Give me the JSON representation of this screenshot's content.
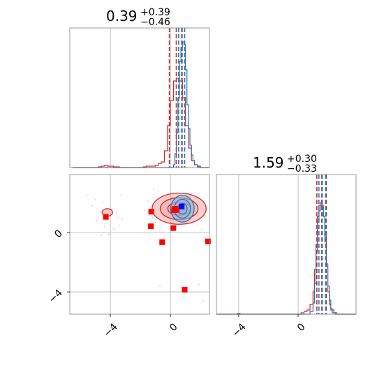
{
  "chart_data": [
    {
      "type": "histogram",
      "panel": "top-left",
      "title": {
        "value": "0.39",
        "plus": "+0.39",
        "minus": "−0.46"
      },
      "xlim": [
        -6.7,
        2.6
      ],
      "x_ticks": [
        -4,
        0
      ],
      "quantile_lines": {
        "red": [
          -0.07,
          0.39,
          0.78
        ],
        "blue": [
          0.55,
          0.75,
          0.95
        ]
      },
      "series": [
        {
          "name": "",
          "color": "#d62728",
          "bins_x": [
            -6.5,
            -4.8,
            -4.6,
            -4.4,
            -4.2,
            -4.0,
            -3.8,
            -3.6,
            -3.4,
            -1.8,
            -1.6,
            -1.4,
            -1.2,
            -1.0,
            -0.8,
            -0.6,
            -0.4,
            -0.2,
            0.0,
            0.2,
            0.4,
            0.6,
            0.8,
            1.0,
            1.2,
            1.4,
            1.6,
            1.8,
            2.0,
            2.6
          ],
          "heights": [
            0,
            0.005,
            0.01,
            0.015,
            0.01,
            0.01,
            0.005,
            0.005,
            0,
            0.005,
            0.01,
            0.01,
            0.01,
            0.015,
            0.03,
            0.04,
            0.12,
            0.3,
            0.48,
            0.62,
            0.64,
            0.62,
            0.5,
            0.3,
            0.14,
            0.05,
            0.02,
            0.01,
            0
          ]
        },
        {
          "name": "",
          "color": "#1f77b4",
          "bins_x": [
            -6.5,
            0.2,
            0.3,
            0.4,
            0.5,
            0.6,
            0.7,
            0.8,
            0.9,
            1.0,
            1.1,
            1.2,
            1.3,
            1.4,
            1.5,
            1.6,
            1.8,
            2.0,
            2.6
          ],
          "heights": [
            0,
            0.02,
            0.1,
            0.25,
            0.5,
            0.76,
            0.86,
            0.9,
            0.88,
            0.7,
            0.45,
            0.28,
            0.16,
            0.09,
            0.05,
            0.02,
            0.005,
            0
          ]
        }
      ]
    },
    {
      "type": "histogram",
      "panel": "bottom-right",
      "title": {
        "value": "1.59",
        "plus": "+0.30",
        "minus": "−0.33"
      },
      "xlim": [
        -5.5,
        3.9
      ],
      "x_ticks": [
        -4,
        0
      ],
      "quantile_lines": {
        "red": [
          1.26,
          1.59,
          1.89
        ],
        "blue": [
          1.4,
          1.62,
          1.85
        ]
      },
      "series": [
        {
          "name": "",
          "color": "#d62728",
          "bins_x": [
            -5.5,
            -4.1,
            -4.0,
            -3.9,
            0.2,
            0.4,
            0.6,
            0.8,
            1.0,
            1.1,
            1.2,
            1.3,
            1.4,
            1.5,
            1.6,
            1.7,
            1.8,
            1.9,
            2.0,
            2.1,
            2.2,
            2.4,
            2.6,
            3.9
          ],
          "heights": [
            0,
            0.005,
            0.005,
            0,
            0.01,
            0.02,
            0.03,
            0.07,
            0.16,
            0.32,
            0.5,
            0.7,
            0.78,
            0.8,
            0.78,
            0.7,
            0.52,
            0.34,
            0.16,
            0.07,
            0.03,
            0.01,
            0
          ]
        },
        {
          "name": "",
          "color": "#1f77b4",
          "bins_x": [
            -5.5,
            0.8,
            1.0,
            1.1,
            1.2,
            1.3,
            1.4,
            1.5,
            1.6,
            1.7,
            1.8,
            1.9,
            2.0,
            2.1,
            2.2,
            2.3,
            2.5,
            3.9
          ],
          "heights": [
            0,
            0.02,
            0.08,
            0.22,
            0.45,
            0.66,
            0.74,
            0.78,
            0.76,
            0.7,
            0.56,
            0.36,
            0.2,
            0.1,
            0.04,
            0.01,
            0
          ]
        }
      ]
    },
    {
      "type": "scatter",
      "panel": "bottom-left",
      "xlim": [
        -6.7,
        2.6
      ],
      "ylim": [
        -5.5,
        3.9
      ],
      "x_ticks": [
        -4,
        0
      ],
      "y_ticks": [
        0,
        -4
      ],
      "contours": [
        {
          "color": "#d62728",
          "fill": "#f4a8a8",
          "cx": 0.58,
          "cy": 1.6,
          "rx": 1.8,
          "ry": 1.05,
          "levels": [
            1.0,
            0.7,
            0.42,
            0.2
          ]
        },
        {
          "color": "#d62728",
          "fill": "#f4a8a8",
          "cx": -4.2,
          "cy": 1.35,
          "rx": 0.35,
          "ry": 0.25,
          "levels": [
            1.0
          ]
        },
        {
          "color": "#1f77b4",
          "fill": "#8fb6dd",
          "cx": 0.8,
          "cy": 1.6,
          "rx": 0.78,
          "ry": 0.9,
          "levels": [
            1.0,
            0.7,
            0.4
          ]
        }
      ],
      "markers": [
        {
          "x": -4.3,
          "y": 1.05,
          "color": "#ff0000"
        },
        {
          "x": -1.28,
          "y": 1.4,
          "color": "#ff0000"
        },
        {
          "x": -1.3,
          "y": 0.42,
          "color": "#ff0000"
        },
        {
          "x": -0.55,
          "y": -0.65,
          "color": "#ff0000"
        },
        {
          "x": 0.2,
          "y": 0.3,
          "color": "#ff0000"
        },
        {
          "x": 0.25,
          "y": 1.5,
          "color": "#ff0000"
        },
        {
          "x": 0.42,
          "y": 1.52,
          "color": "#ff0000"
        },
        {
          "x": 0.3,
          "y": 1.6,
          "color": "#ff0000"
        },
        {
          "x": 2.5,
          "y": -0.6,
          "color": "#ff0000"
        },
        {
          "x": 0.95,
          "y": -3.85,
          "color": "#ff0000"
        },
        {
          "x": 0.75,
          "y": 1.75,
          "color": "#0000ff"
        }
      ],
      "scatter_points": {
        "x": [
          -5.6,
          -5.2,
          -4.9,
          -4.7,
          -4.5,
          -4.4,
          -4.2,
          -4.0,
          -3.9,
          -3.7,
          -3.5,
          -3.4,
          -3.2,
          -4.6,
          -4.1,
          -3.8,
          -5.0,
          -3.3,
          -1.5,
          -1.2,
          -1.0,
          -0.8,
          -1.7,
          -1.4,
          -0.7,
          -0.4,
          1.8,
          2.1,
          2.3,
          -0.7,
          1.9,
          2.2,
          -4.5,
          -3.6,
          -1.1,
          1.6
        ],
        "y": [
          2.5,
          1.8,
          0.8,
          1.4,
          2.0,
          0.4,
          1.1,
          0.6,
          1.6,
          0.2,
          1.0,
          0.5,
          0.9,
          -0.2,
          -0.1,
          0.3,
          2.2,
          2.5,
          2.1,
          1.0,
          0.7,
          2.8,
          1.5,
          0.3,
          0.1,
          -0.3,
          0.5,
          0.2,
          -0.3,
          -3.6,
          -3.5,
          -4.6,
          0.0,
          1.3,
          2.9,
          2.4
        ]
      }
    }
  ]
}
